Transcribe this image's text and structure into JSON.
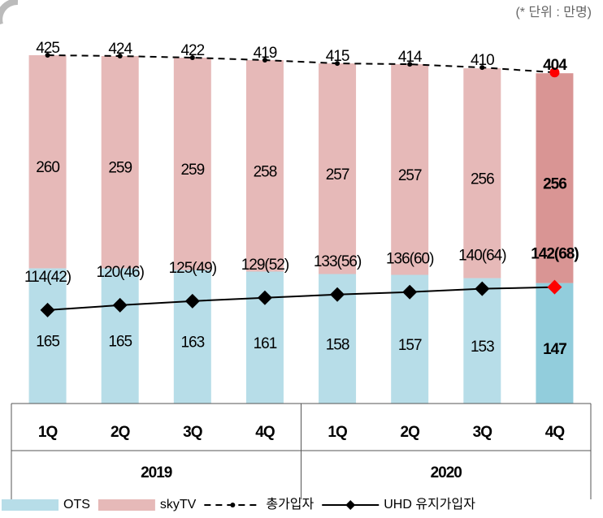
{
  "chart_data": {
    "type": "stacked_bar_line",
    "subtitle": "(* 단위 : 만명)",
    "categories": [
      "1Q",
      "2Q",
      "3Q",
      "4Q",
      "1Q",
      "2Q",
      "3Q",
      "4Q"
    ],
    "groups": [
      {
        "label": "2019",
        "span": 4
      },
      {
        "label": "2020",
        "span": 4
      }
    ],
    "bold_labels": [
      false,
      false,
      false,
      false,
      false,
      false,
      false,
      true
    ],
    "series": [
      {
        "name": "OTS",
        "kind": "bar",
        "color": "#b7dde8",
        "colors": [
          "#b7dde8",
          "#b7dde8",
          "#b7dde8",
          "#b7dde8",
          "#b7dde8",
          "#b7dde8",
          "#b7dde8",
          "#92cddc"
        ],
        "values": [
          165,
          165,
          163,
          161,
          158,
          157,
          153,
          147
        ]
      },
      {
        "name": "skyTV",
        "kind": "bar",
        "color": "#e6b9b8",
        "colors": [
          "#e6b9b8",
          "#e6b9b8",
          "#e6b9b8",
          "#e6b9b8",
          "#e6b9b8",
          "#e6b9b8",
          "#e6b9b8",
          "#d99594"
        ],
        "values": [
          260,
          259,
          259,
          258,
          257,
          257,
          256,
          256
        ]
      },
      {
        "name": "총가입자",
        "kind": "dashed_line",
        "color": "#000000",
        "colors": [
          "#000000",
          "#000000",
          "#000000",
          "#000000",
          "#000000",
          "#000000",
          "#000000",
          "#ff0000"
        ],
        "values": [
          425,
          424,
          422,
          419,
          415,
          414,
          410,
          404
        ]
      },
      {
        "name": "UHD 유지가입자",
        "kind": "line",
        "color": "#000000",
        "colors": [
          "#000000",
          "#000000",
          "#000000",
          "#000000",
          "#000000",
          "#000000",
          "#000000",
          "#ff0000"
        ],
        "values": [
          114,
          120,
          125,
          129,
          133,
          136,
          140,
          142
        ],
        "value_labels": [
          "114(42)",
          "120(46)",
          "125(49)",
          "129(52)",
          "133(56)",
          "136(60)",
          "140(64)",
          "142(68)"
        ]
      }
    ]
  }
}
